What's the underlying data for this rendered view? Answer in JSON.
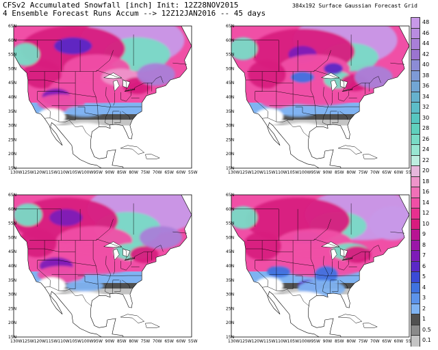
{
  "header": {
    "line1": "CFSv2 Accumulated Snowfall [inch] Init: 12Z28NOV2015",
    "line2": "4 Ensemble Forecast Runs Accum --> 12Z12JAN2016 -- 45 days",
    "grid_note": "384x192 Surface Gaussian Forecast Grid"
  },
  "panels": [
    {
      "id": "run-1"
    },
    {
      "id": "run-2"
    },
    {
      "id": "run-3"
    },
    {
      "id": "run-4"
    }
  ],
  "lat_labels": [
    "65N",
    "60N",
    "55N",
    "50N",
    "45N",
    "40N",
    "35N",
    "30N",
    "25N",
    "20N",
    "15N"
  ],
  "lon_labels": [
    "130W",
    "125W",
    "120W",
    "115W",
    "110W",
    "105W",
    "100W",
    "95W",
    "90W",
    "85W",
    "80W",
    "75W",
    "70W",
    "65W",
    "60W",
    "55W"
  ],
  "colorbar": {
    "levels": [
      {
        "label": "48",
        "color": "#c899e8"
      },
      {
        "label": "46",
        "color": "#b98ce0"
      },
      {
        "label": "44",
        "color": "#a97fd8"
      },
      {
        "label": "42",
        "color": "#9b74d0"
      },
      {
        "label": "40",
        "color": "#8c8cd6"
      },
      {
        "label": "38",
        "color": "#7e9ad6"
      },
      {
        "label": "36",
        "color": "#72a6d4"
      },
      {
        "label": "34",
        "color": "#66b2ce"
      },
      {
        "label": "32",
        "color": "#5cbdc8"
      },
      {
        "label": "30",
        "color": "#56c6c0"
      },
      {
        "label": "28",
        "color": "#5fd0bd"
      },
      {
        "label": "26",
        "color": "#79dbc6"
      },
      {
        "label": "24",
        "color": "#98e6d2"
      },
      {
        "label": "22",
        "color": "#bdeee0"
      },
      {
        "label": "20",
        "color": "#e7b7dc"
      },
      {
        "label": "18",
        "color": "#ee94ca"
      },
      {
        "label": "16",
        "color": "#f070b7"
      },
      {
        "label": "14",
        "color": "#f04fa6"
      },
      {
        "label": "12",
        "color": "#e8308f"
      },
      {
        "label": "10",
        "color": "#d81b7e"
      },
      {
        "label": "9",
        "color": "#b81493"
      },
      {
        "label": "8",
        "color": "#9a16a8"
      },
      {
        "label": "7",
        "color": "#7d1bb8"
      },
      {
        "label": "6",
        "color": "#5a28c6"
      },
      {
        "label": "5",
        "color": "#3b4ad6"
      },
      {
        "label": "4",
        "color": "#3f72e0"
      },
      {
        "label": "3",
        "color": "#5c93ea"
      },
      {
        "label": "2",
        "color": "#7fb3f2"
      },
      {
        "label": "1",
        "color": "#505050"
      },
      {
        "label": "0.5",
        "color": "#8a8a8a"
      },
      {
        "label": "0.1",
        "color": "#c4c4c4"
      }
    ]
  }
}
